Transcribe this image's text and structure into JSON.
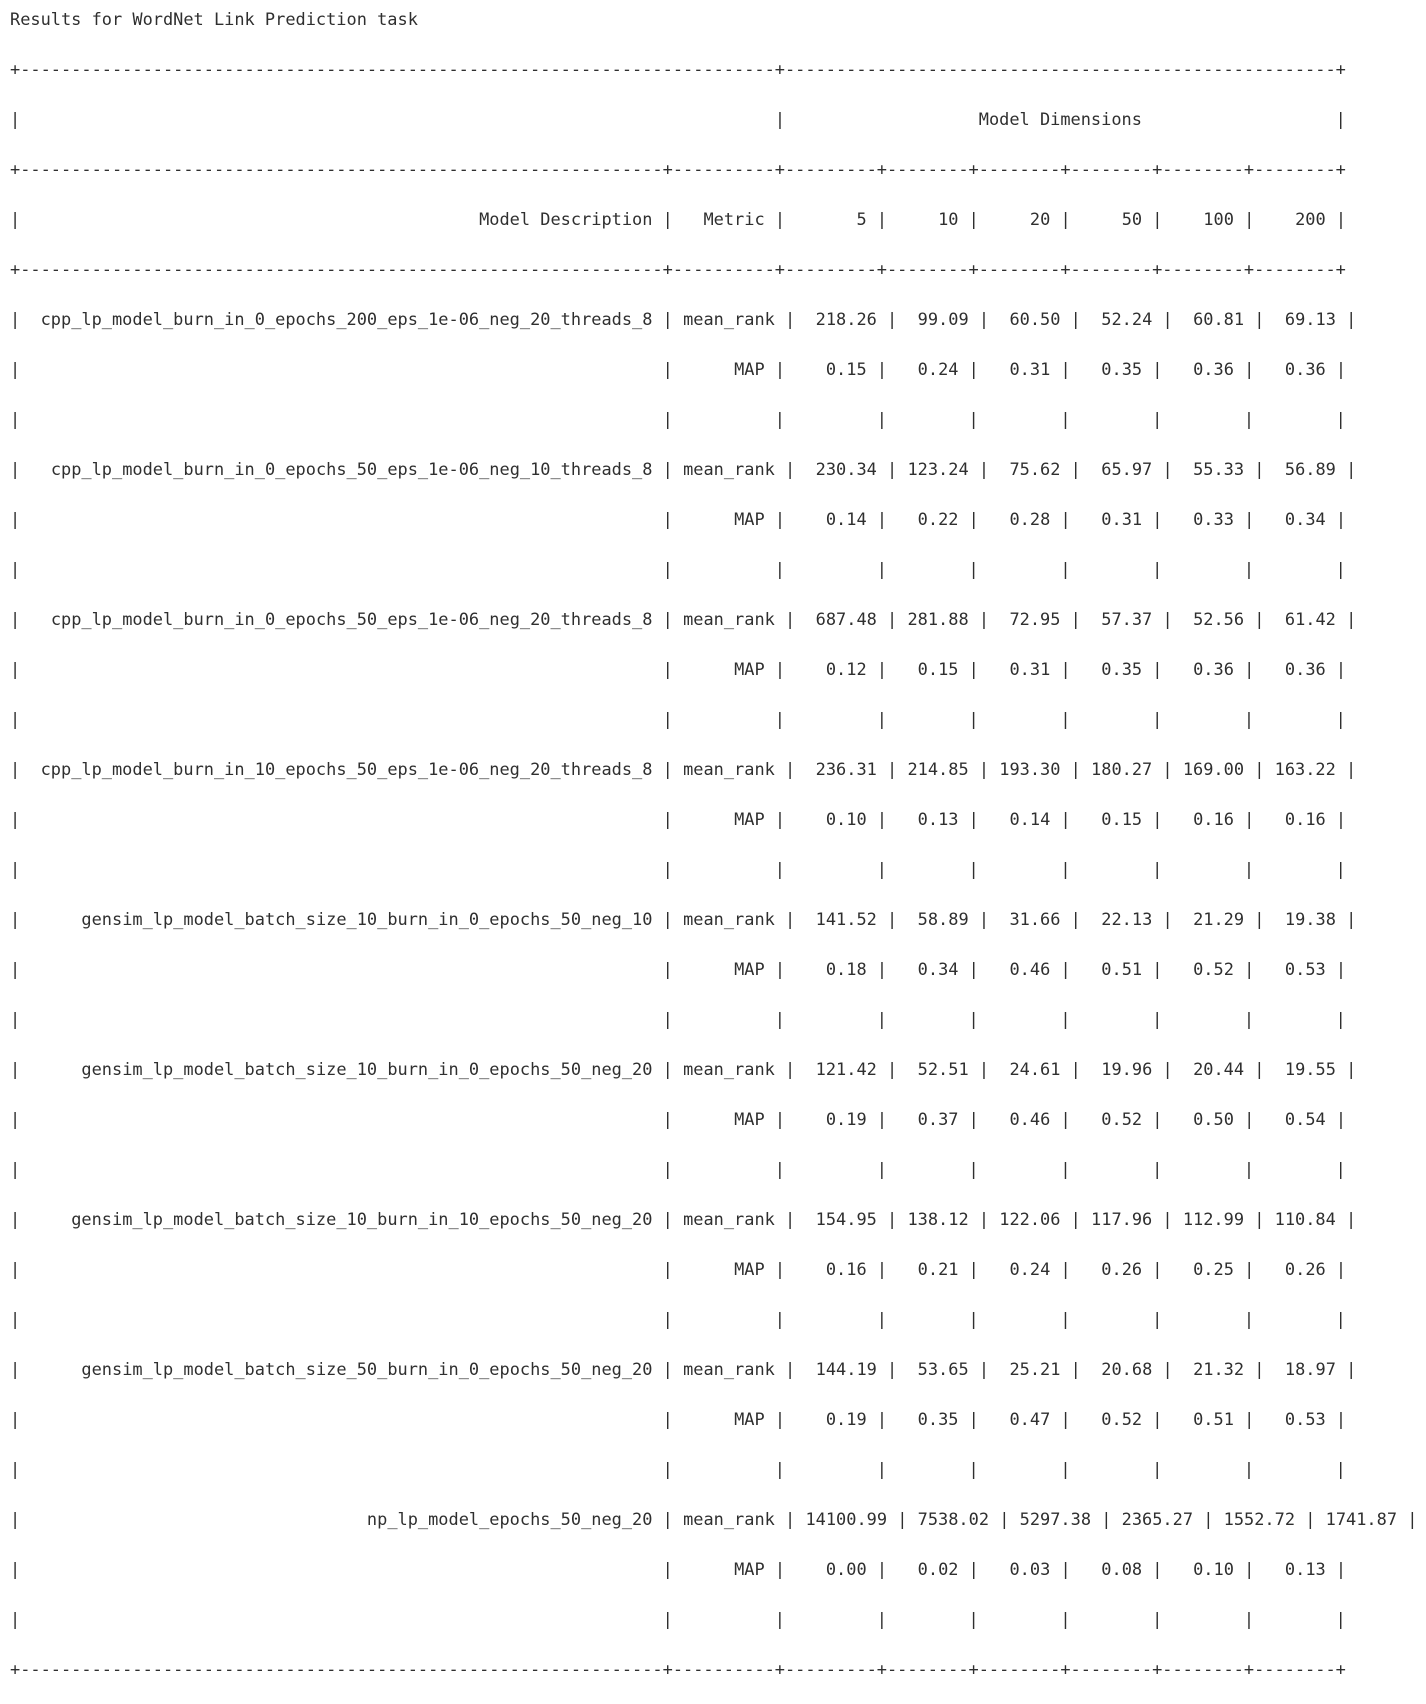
{
  "title": "Results for WordNet Link Prediction task",
  "group_header": "Model Dimensions",
  "headers": {
    "description": "Model Description",
    "metric": "Metric",
    "dimensions": [
      "5",
      "10",
      "20",
      "50",
      "100",
      "200"
    ]
  },
  "rows": [
    {
      "model": "cpp_lp_model_burn_in_0_epochs_200_eps_1e-06_neg_20_threads_8",
      "metrics": [
        {
          "name": "mean_rank",
          "values": [
            "218.26",
            "99.09",
            "60.50",
            "52.24",
            "60.81",
            "69.13"
          ]
        },
        {
          "name": "MAP",
          "values": [
            "0.15",
            "0.24",
            "0.31",
            "0.35",
            "0.36",
            "0.36"
          ]
        }
      ]
    },
    {
      "model": "cpp_lp_model_burn_in_0_epochs_50_eps_1e-06_neg_10_threads_8",
      "metrics": [
        {
          "name": "mean_rank",
          "values": [
            "230.34",
            "123.24",
            "75.62",
            "65.97",
            "55.33",
            "56.89"
          ]
        },
        {
          "name": "MAP",
          "values": [
            "0.14",
            "0.22",
            "0.28",
            "0.31",
            "0.33",
            "0.34"
          ]
        }
      ]
    },
    {
      "model": "cpp_lp_model_burn_in_0_epochs_50_eps_1e-06_neg_20_threads_8",
      "metrics": [
        {
          "name": "mean_rank",
          "values": [
            "687.48",
            "281.88",
            "72.95",
            "57.37",
            "52.56",
            "61.42"
          ]
        },
        {
          "name": "MAP",
          "values": [
            "0.12",
            "0.15",
            "0.31",
            "0.35",
            "0.36",
            "0.36"
          ]
        }
      ]
    },
    {
      "model": "cpp_lp_model_burn_in_10_epochs_50_eps_1e-06_neg_20_threads_8",
      "metrics": [
        {
          "name": "mean_rank",
          "values": [
            "236.31",
            "214.85",
            "193.30",
            "180.27",
            "169.00",
            "163.22"
          ]
        },
        {
          "name": "MAP",
          "values": [
            "0.10",
            "0.13",
            "0.14",
            "0.15",
            "0.16",
            "0.16"
          ]
        }
      ]
    },
    {
      "model": "gensim_lp_model_batch_size_10_burn_in_0_epochs_50_neg_10",
      "metrics": [
        {
          "name": "mean_rank",
          "values": [
            "141.52",
            "58.89",
            "31.66",
            "22.13",
            "21.29",
            "19.38"
          ]
        },
        {
          "name": "MAP",
          "values": [
            "0.18",
            "0.34",
            "0.46",
            "0.51",
            "0.52",
            "0.53"
          ]
        }
      ]
    },
    {
      "model": "gensim_lp_model_batch_size_10_burn_in_0_epochs_50_neg_20",
      "metrics": [
        {
          "name": "mean_rank",
          "values": [
            "121.42",
            "52.51",
            "24.61",
            "19.96",
            "20.44",
            "19.55"
          ]
        },
        {
          "name": "MAP",
          "values": [
            "0.19",
            "0.37",
            "0.46",
            "0.52",
            "0.50",
            "0.54"
          ]
        }
      ]
    },
    {
      "model": "gensim_lp_model_batch_size_10_burn_in_10_epochs_50_neg_20",
      "metrics": [
        {
          "name": "mean_rank",
          "values": [
            "154.95",
            "138.12",
            "122.06",
            "117.96",
            "112.99",
            "110.84"
          ]
        },
        {
          "name": "MAP",
          "values": [
            "0.16",
            "0.21",
            "0.24",
            "0.26",
            "0.25",
            "0.26"
          ]
        }
      ]
    },
    {
      "model": "gensim_lp_model_batch_size_50_burn_in_0_epochs_50_neg_20",
      "metrics": [
        {
          "name": "mean_rank",
          "values": [
            "144.19",
            "53.65",
            "25.21",
            "20.68",
            "21.32",
            "18.97"
          ]
        },
        {
          "name": "MAP",
          "values": [
            "0.19",
            "0.35",
            "0.47",
            "0.52",
            "0.51",
            "0.53"
          ]
        }
      ]
    },
    {
      "model": "np_lp_model_epochs_50_neg_20",
      "metrics": [
        {
          "name": "mean_rank",
          "values": [
            "14100.99",
            "7538.02",
            "5297.38",
            "2365.27",
            "1552.72",
            "1741.87"
          ]
        },
        {
          "name": "MAP",
          "values": [
            "0.00",
            "0.02",
            "0.03",
            "0.08",
            "0.10",
            "0.13"
          ]
        }
      ]
    }
  ]
}
